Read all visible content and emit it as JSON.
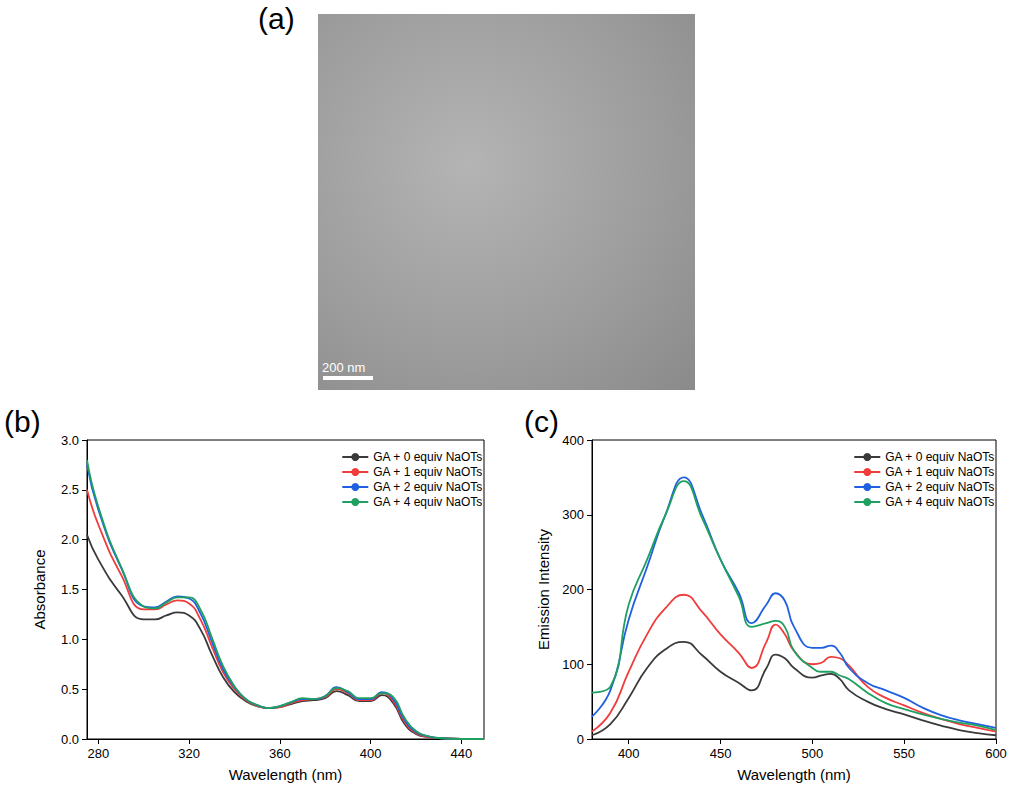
{
  "image_panel": {
    "label": "(a)",
    "scale_bar": "200 nm"
  },
  "chart_data": [
    {
      "label": "(b)",
      "type": "line",
      "x_label": "Wavelength (nm)",
      "y_label": "Absorbance",
      "x": [
        275,
        280,
        290,
        300,
        305,
        310,
        315,
        320,
        325,
        330,
        335,
        340,
        345,
        350,
        355,
        360,
        365,
        370,
        375,
        380,
        385,
        390,
        395,
        400,
        405,
        410,
        415,
        420,
        425,
        430,
        440,
        450
      ],
      "series": [
        {
          "name": "GA + 0 equiv NaOTs",
          "color": "#3a3a3a",
          "values": [
            2.05,
            1.8,
            1.45,
            1.2,
            1.2,
            1.24,
            1.27,
            1.24,
            1.1,
            0.85,
            0.62,
            0.47,
            0.38,
            0.33,
            0.31,
            0.32,
            0.35,
            0.38,
            0.39,
            0.41,
            0.48,
            0.44,
            0.38,
            0.38,
            0.44,
            0.36,
            0.15,
            0.05,
            0.02,
            0.01,
            0.0,
            0.0
          ]
        },
        {
          "name": "GA + 1 equiv NaOTs",
          "color": "#f03c3c",
          "values": [
            2.5,
            2.15,
            1.65,
            1.3,
            1.3,
            1.35,
            1.39,
            1.36,
            1.2,
            0.93,
            0.67,
            0.5,
            0.39,
            0.33,
            0.31,
            0.32,
            0.36,
            0.39,
            0.4,
            0.42,
            0.5,
            0.46,
            0.39,
            0.39,
            0.46,
            0.38,
            0.17,
            0.06,
            0.02,
            0.01,
            0.0,
            0.0
          ]
        },
        {
          "name": "GA + 2 equiv NaOTs",
          "color": "#2060e0",
          "values": [
            2.75,
            2.3,
            1.72,
            1.33,
            1.32,
            1.38,
            1.43,
            1.41,
            1.26,
            0.98,
            0.7,
            0.52,
            0.4,
            0.34,
            0.31,
            0.33,
            0.37,
            0.4,
            0.4,
            0.43,
            0.52,
            0.47,
            0.4,
            0.4,
            0.47,
            0.4,
            0.19,
            0.07,
            0.03,
            0.01,
            0.0,
            0.0
          ]
        },
        {
          "name": "GA + 4 equiv NaOTs",
          "color": "#20a060",
          "values": [
            2.8,
            2.33,
            1.73,
            1.33,
            1.31,
            1.37,
            1.42,
            1.42,
            1.3,
            1.02,
            0.73,
            0.53,
            0.4,
            0.34,
            0.31,
            0.33,
            0.37,
            0.41,
            0.4,
            0.43,
            0.51,
            0.48,
            0.41,
            0.41,
            0.46,
            0.42,
            0.21,
            0.08,
            0.03,
            0.01,
            0.0,
            0.0
          ]
        }
      ],
      "xlim": [
        275,
        450
      ],
      "xticks": [
        280,
        320,
        360,
        400,
        440
      ],
      "ylim": [
        0,
        3
      ],
      "yticks": [
        {
          "value": 0,
          "label": "0.0"
        },
        {
          "value": 0.5,
          "label": "0.5"
        },
        {
          "value": 1,
          "label": "1.0"
        },
        {
          "value": 1.5,
          "label": "1.5"
        },
        {
          "value": 2,
          "label": "2.0"
        },
        {
          "value": 2.5,
          "label": "2.5"
        },
        {
          "value": 3,
          "label": "3.0"
        }
      ],
      "legend": "upper right",
      "grid": false
    },
    {
      "label": "(c)",
      "type": "line",
      "x_label": "Wavelength (nm)",
      "y_label": "Emission Intensity",
      "x": [
        380,
        390,
        400,
        410,
        420,
        430,
        440,
        450,
        460,
        467,
        475,
        480,
        485,
        490,
        500,
        505,
        510,
        515,
        520,
        530,
        540,
        550,
        560,
        570,
        580,
        590,
        600
      ],
      "series": [
        {
          "name": "GA + 0 equiv NaOTs",
          "color": "#3a3a3a",
          "values": [
            5,
            20,
            55,
            95,
            120,
            130,
            112,
            90,
            75,
            65,
            95,
            113,
            108,
            95,
            82,
            85,
            87,
            80,
            65,
            50,
            40,
            33,
            25,
            18,
            12,
            8,
            5
          ]
        },
        {
          "name": "GA + 1 equiv NaOTs",
          "color": "#f03c3c",
          "values": [
            10,
            35,
            90,
            140,
            175,
            193,
            170,
            140,
            115,
            95,
            130,
            153,
            140,
            118,
            100,
            102,
            110,
            108,
            98,
            70,
            55,
            45,
            35,
            27,
            20,
            15,
            10
          ]
        },
        {
          "name": "GA + 2 equiv NaOTs",
          "color": "#2060e0",
          "values": [
            30,
            65,
            160,
            230,
            300,
            350,
            300,
            240,
            195,
            155,
            180,
            195,
            185,
            150,
            122,
            122,
            125,
            115,
            95,
            75,
            65,
            55,
            42,
            32,
            25,
            20,
            15
          ]
        },
        {
          "name": "GA + 4 equiv NaOTs",
          "color": "#20a060",
          "values": [
            62,
            70,
            180,
            240,
            300,
            345,
            295,
            240,
            190,
            150,
            155,
            158,
            150,
            118,
            95,
            90,
            90,
            85,
            80,
            62,
            48,
            40,
            33,
            27,
            22,
            18,
            12
          ]
        }
      ],
      "xlim": [
        380,
        600
      ],
      "xticks": [
        400,
        450,
        500,
        550,
        600
      ],
      "ylim": [
        0,
        400
      ],
      "yticks": [
        0,
        100,
        200,
        300,
        400
      ],
      "legend": "upper right",
      "grid": false
    }
  ]
}
